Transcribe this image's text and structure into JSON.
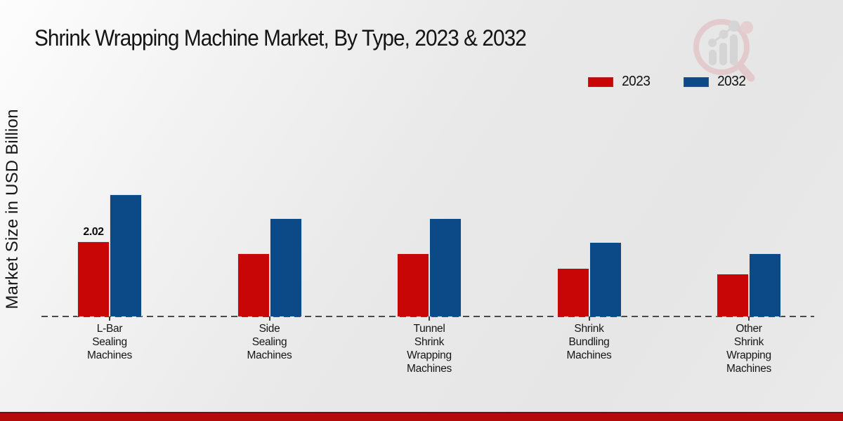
{
  "page": {
    "title": "Shrink Wrapping Machine Market, By Type, 2023 & 2032",
    "ylabel": "Market Size in USD Billion"
  },
  "legend": {
    "items": [
      {
        "label": "2023",
        "color": "#c90606"
      },
      {
        "label": "2032",
        "color": "#0b4a87"
      }
    ]
  },
  "chart_data": {
    "type": "bar",
    "title": "Shrink Wrapping Machine Market, By Type, 2023 & 2032",
    "ylabel": "Market Size in USD Billion",
    "xlabel": "",
    "categories": [
      "L-Bar Sealing Machines",
      "Side Sealing Machines",
      "Tunnel Shrink Wrapping Machines",
      "Shrink Bundling Machines",
      "Other Shrink Wrapping Machines"
    ],
    "categories_wrapped": [
      [
        "L-Bar",
        "Sealing",
        "Machines"
      ],
      [
        "Side",
        "Sealing",
        "Machines"
      ],
      [
        "Tunnel",
        "Shrink",
        "Wrapping",
        "Machines"
      ],
      [
        "Shrink",
        "Bundling",
        "Machines"
      ],
      [
        "Other",
        "Shrink",
        "Wrapping",
        "Machines"
      ]
    ],
    "series": [
      {
        "name": "2023",
        "color": "#c90606",
        "values": [
          2.02,
          1.71,
          1.71,
          1.31,
          1.16
        ]
      },
      {
        "name": "2032",
        "color": "#0b4a87",
        "values": [
          3.3,
          2.65,
          2.65,
          2.0,
          1.7
        ]
      }
    ],
    "annotations": [
      {
        "category_index": 0,
        "series_index": 0,
        "text": "2.02"
      }
    ],
    "ylim": [
      0,
      3.6
    ],
    "grid": false,
    "baseline_style": "dashed",
    "legend_position": "top-right",
    "colors": {
      "series_2023": "#c90606",
      "series_2032": "#0b4a87",
      "footer_bar": "#b40a0a",
      "background": "#e8e8e8"
    }
  }
}
